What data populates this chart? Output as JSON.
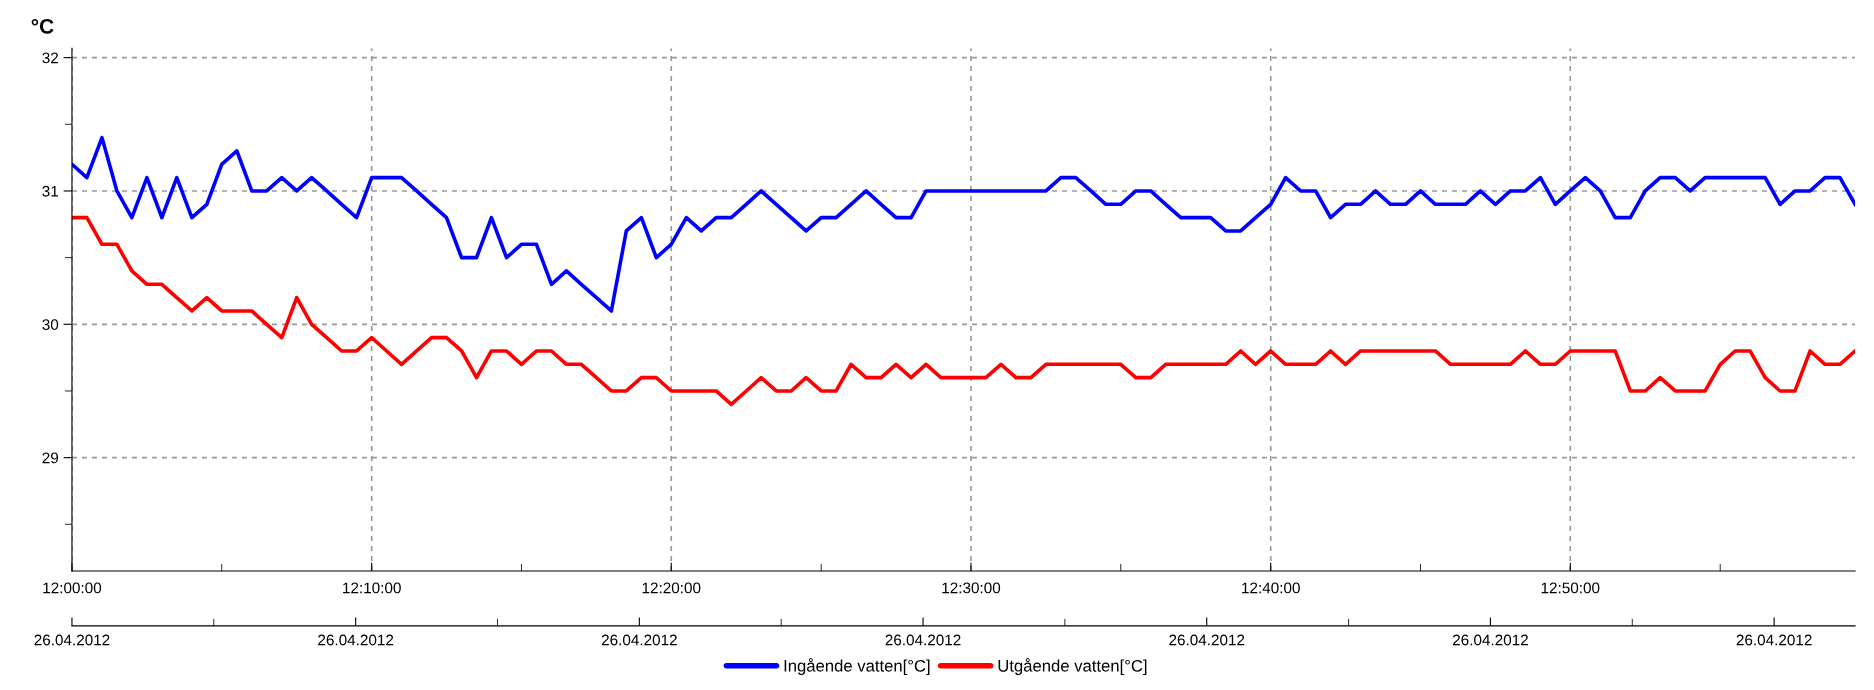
{
  "chart_data": {
    "type": "line",
    "ylabel": "°C",
    "legend": "bottom",
    "grid": true,
    "line_style": "solid",
    "xlim": [
      12,
      12.9917
    ],
    "ylim": [
      28.15,
      32.07
    ],
    "yticks": [
      {
        "value": 28.5,
        "label": null
      },
      29,
      {
        "value": 29.5,
        "label": null
      },
      30,
      {
        "value": 30.5,
        "label": null
      },
      31,
      {
        "value": 31.5,
        "label": null
      },
      32
    ],
    "xticks": [
      {
        "value": 12,
        "label": "12:00:00"
      },
      {
        "value": 12.0833,
        "label": null
      },
      {
        "value": 12.1667,
        "label": "12:10:00"
      },
      {
        "value": 12.25,
        "label": null
      },
      {
        "value": 12.3333,
        "label": "12:20:00"
      },
      {
        "value": 12.4167,
        "label": null
      },
      {
        "value": 12.5,
        "label": "12:30:00"
      },
      {
        "value": 12.5833,
        "label": null
      },
      {
        "value": 12.6667,
        "label": "12:40:00"
      },
      {
        "value": 12.75,
        "label": null
      },
      {
        "value": 12.8333,
        "label": "12:50:00"
      },
      {
        "value": 12.9167,
        "label": null
      }
    ],
    "annotations": [
      "26.04.2012",
      "26.04.2012",
      "26.04.2012",
      "26.04.2012",
      "26.04.2012",
      "26.04.2012",
      "26.04.2012"
    ],
    "x": [
      12,
      12.0083,
      12.0167,
      12.025,
      12.0333,
      12.0417,
      12.05,
      12.0583,
      12.0667,
      12.075,
      12.0833,
      12.0917,
      12.1,
      12.1083,
      12.1167,
      12.125,
      12.1333,
      12.1417,
      12.15,
      12.1583,
      12.1667,
      12.175,
      12.1833,
      12.1917,
      12.2,
      12.2083,
      12.2167,
      12.225,
      12.2333,
      12.2417,
      12.25,
      12.2583,
      12.2667,
      12.275,
      12.2833,
      12.2917,
      12.3,
      12.3083,
      12.3167,
      12.325,
      12.3333,
      12.3417,
      12.35,
      12.3583,
      12.3667,
      12.375,
      12.3833,
      12.3917,
      12.4,
      12.4083,
      12.4167,
      12.425,
      12.4333,
      12.4417,
      12.45,
      12.4583,
      12.4667,
      12.475,
      12.4833,
      12.4917,
      12.5,
      12.5083,
      12.5167,
      12.525,
      12.5333,
      12.5417,
      12.55,
      12.5583,
      12.5667,
      12.575,
      12.5833,
      12.5917,
      12.6,
      12.6083,
      12.6167,
      12.625,
      12.6333,
      12.6417,
      12.65,
      12.6583,
      12.6667,
      12.675,
      12.6833,
      12.6917,
      12.7,
      12.7083,
      12.7167,
      12.725,
      12.7333,
      12.7417,
      12.75,
      12.7583,
      12.7667,
      12.775,
      12.7833,
      12.7917,
      12.8,
      12.8083,
      12.8167,
      12.825,
      12.8333,
      12.8417,
      12.85,
      12.8583,
      12.8667,
      12.875,
      12.8833,
      12.8917,
      12.9,
      12.9083,
      12.9167,
      12.925,
      12.9333,
      12.9417,
      12.95,
      12.9583,
      12.9667,
      12.975,
      12.9833,
      12.9917
    ],
    "series": [
      {
        "name": "Ingående vatten[°C]",
        "color": "#0000ff",
        "values": [
          31.2,
          31.1,
          31.4,
          31.0,
          30.8,
          31.1,
          30.8,
          31.1,
          30.8,
          30.9,
          31.2,
          31.3,
          31.0,
          31.0,
          31.1,
          31.0,
          31.1,
          31.0,
          30.9,
          30.8,
          31.1,
          31.1,
          31.1,
          31.0,
          30.9,
          30.8,
          30.5,
          30.5,
          30.8,
          30.5,
          30.6,
          30.6,
          30.3,
          30.4,
          30.3,
          30.2,
          30.1,
          30.7,
          30.8,
          30.5,
          30.6,
          30.8,
          30.7,
          30.8,
          30.8,
          30.9,
          31.0,
          30.9,
          30.8,
          30.7,
          30.8,
          30.8,
          30.9,
          31.0,
          30.9,
          30.8,
          30.8,
          31.0,
          31.0,
          31.0,
          31.0,
          31.0,
          31.0,
          31.0,
          31.0,
          31.0,
          31.1,
          31.1,
          31.0,
          30.9,
          30.9,
          31.0,
          31.0,
          30.9,
          30.8,
          30.8,
          30.8,
          30.7,
          30.7,
          30.8,
          30.9,
          31.1,
          31.0,
          31.0,
          30.8,
          30.9,
          30.9,
          31.0,
          30.9,
          30.9,
          31.0,
          30.9,
          30.9,
          30.9,
          31.0,
          30.9,
          31.0,
          31.0,
          31.1,
          30.9,
          31.0,
          31.1,
          31.0,
          30.8,
          30.8,
          31.0,
          31.1,
          31.1,
          31.0,
          31.1,
          31.1,
          31.1,
          31.1,
          31.1,
          30.9,
          31.0,
          31.0,
          31.1,
          31.1,
          30.9
        ]
      },
      {
        "name": "Utgående vatten[°C]",
        "color": "#ff0000",
        "values": [
          30.8,
          30.8,
          30.6,
          30.6,
          30.4,
          30.3,
          30.3,
          30.2,
          30.1,
          30.2,
          30.1,
          30.1,
          30.1,
          30.0,
          29.9,
          30.2,
          30.0,
          29.9,
          29.8,
          29.8,
          29.9,
          29.8,
          29.7,
          29.8,
          29.9,
          29.9,
          29.8,
          29.6,
          29.8,
          29.8,
          29.7,
          29.8,
          29.8,
          29.7,
          29.7,
          29.6,
          29.5,
          29.5,
          29.6,
          29.6,
          29.5,
          29.5,
          29.5,
          29.5,
          29.4,
          29.5,
          29.6,
          29.5,
          29.5,
          29.6,
          29.5,
          29.5,
          29.7,
          29.6,
          29.6,
          29.7,
          29.6,
          29.7,
          29.6,
          29.6,
          29.6,
          29.6,
          29.7,
          29.6,
          29.6,
          29.7,
          29.7,
          29.7,
          29.7,
          29.7,
          29.7,
          29.6,
          29.6,
          29.7,
          29.7,
          29.7,
          29.7,
          29.7,
          29.8,
          29.7,
          29.8,
          29.7,
          29.7,
          29.7,
          29.8,
          29.7,
          29.8,
          29.8,
          29.8,
          29.8,
          29.8,
          29.8,
          29.7,
          29.7,
          29.7,
          29.7,
          29.7,
          29.8,
          29.7,
          29.7,
          29.8,
          29.8,
          29.8,
          29.8,
          29.5,
          29.5,
          29.6,
          29.5,
          29.5,
          29.5,
          29.7,
          29.8,
          29.8,
          29.6,
          29.5,
          29.5,
          29.8,
          29.7,
          29.7,
          29.8
        ]
      }
    ]
  }
}
